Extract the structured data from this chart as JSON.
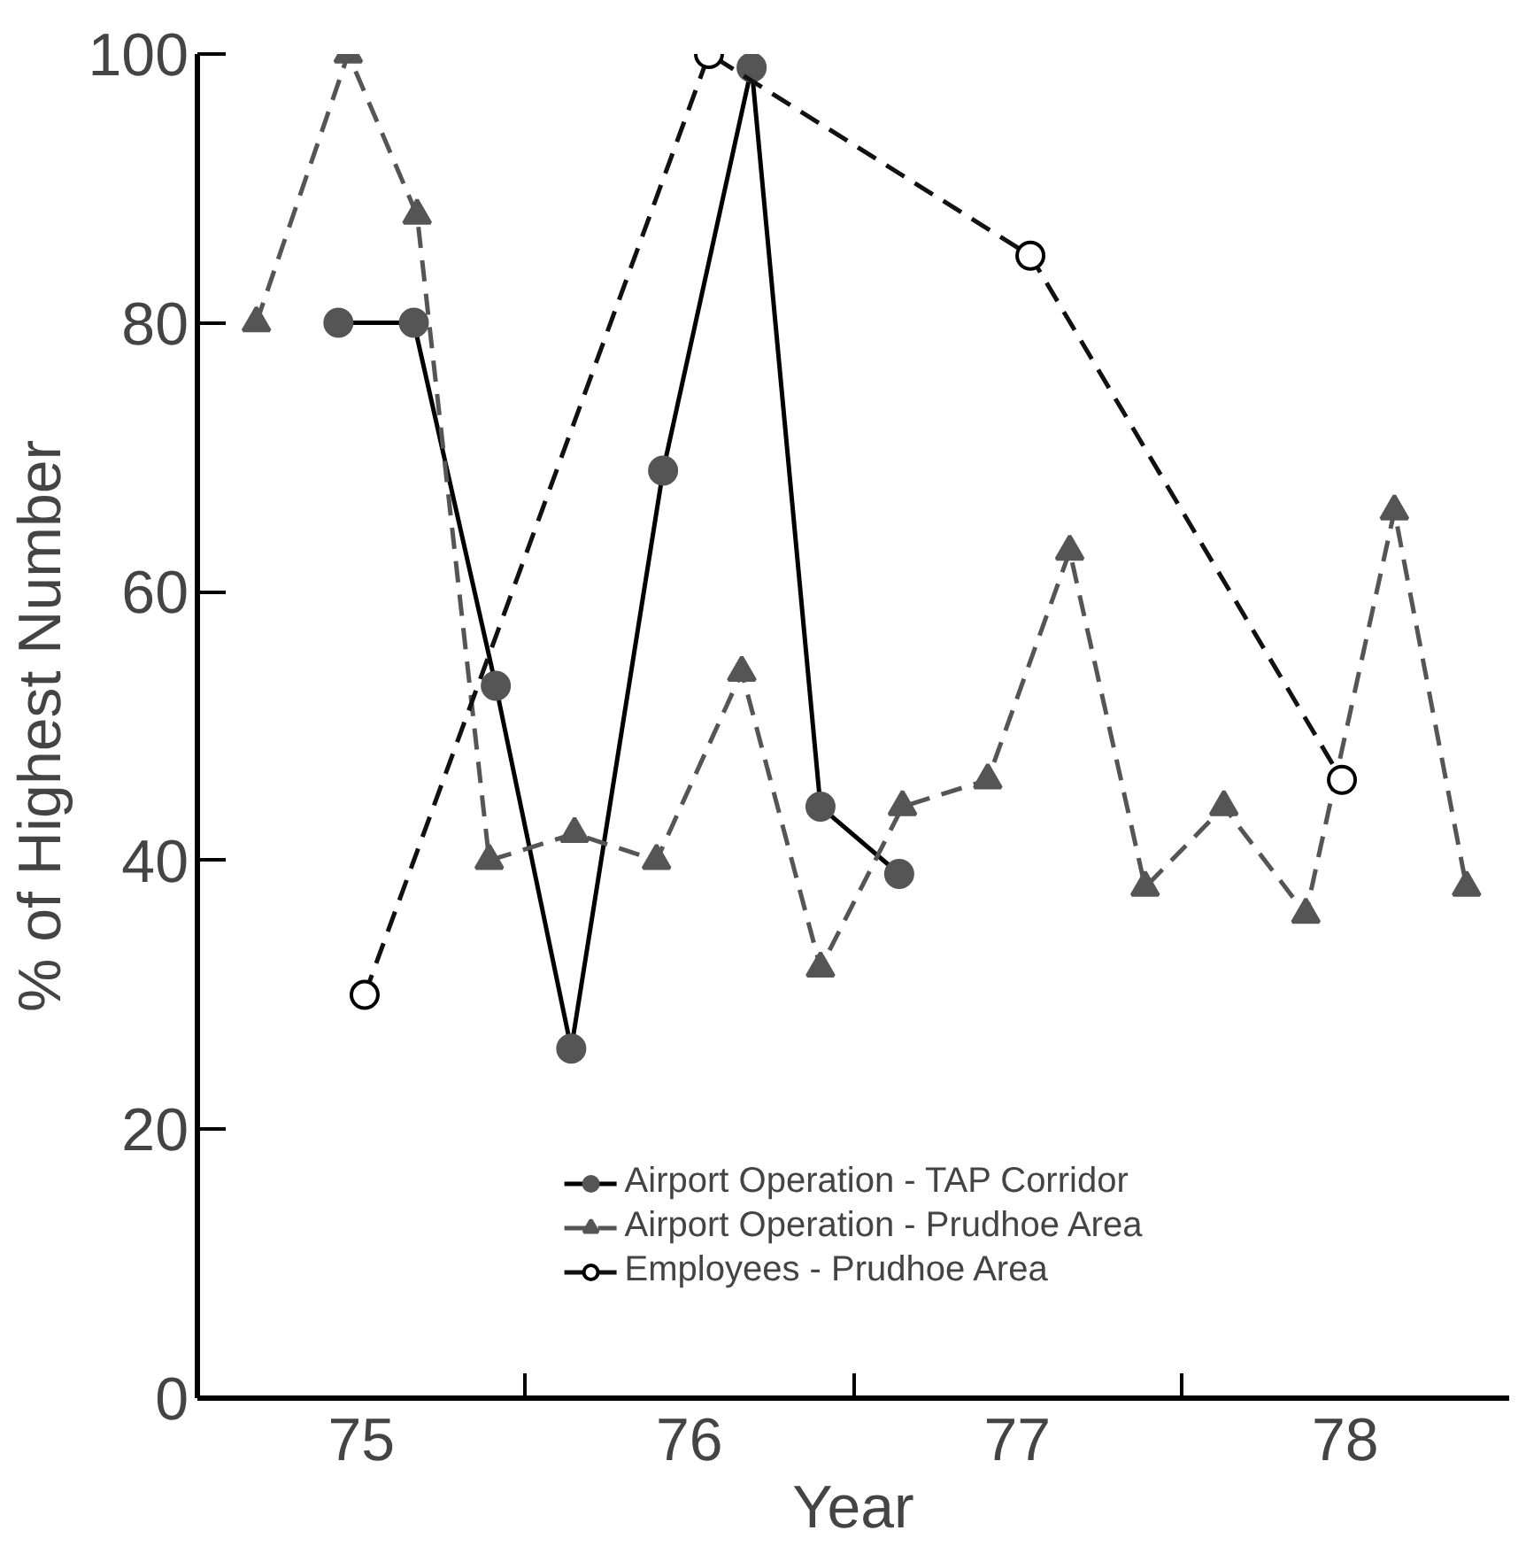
{
  "chart_data": {
    "type": "line",
    "xlabel": "Year",
    "ylabel": "% of Highest Number",
    "xlim": [
      75.0,
      79.0
    ],
    "ylim": [
      0,
      100
    ],
    "xticks": [
      {
        "value": 75.5,
        "label": "75"
      },
      {
        "value": 76,
        "label": null
      },
      {
        "value": 76.5,
        "label": "76"
      },
      {
        "value": 77,
        "label": null
      },
      {
        "value": 77.5,
        "label": "77"
      },
      {
        "value": 78,
        "label": null
      },
      {
        "value": 78.5,
        "label": "78"
      }
    ],
    "yticks": [
      0,
      20,
      40,
      60,
      80,
      100
    ],
    "grid": false,
    "legend": "bottom",
    "series": [
      {
        "name": "Airport Operation - TAP Corridor",
        "color": "#555555",
        "marker": "circle",
        "line_style": "solid",
        "x": [
          75.43,
          75.66,
          75.91,
          76.14,
          76.42,
          76.69,
          76.9,
          77.14
        ],
        "values": [
          80,
          80,
          53,
          26,
          69,
          99,
          44,
          39
        ]
      },
      {
        "name": "Airport Operation - Prudhoe Area",
        "color": "#555555",
        "marker": "triangle",
        "line_style": "dashed",
        "x": [
          75.18,
          75.46,
          75.67,
          75.89,
          76.15,
          76.4,
          76.66,
          76.9,
          77.15,
          77.41,
          77.66,
          77.89,
          78.13,
          78.38,
          78.65,
          78.87
        ],
        "values": [
          80,
          100,
          88,
          40,
          42,
          40,
          54,
          32,
          44,
          46,
          63,
          38,
          44,
          36,
          66,
          38
        ]
      },
      {
        "name": "Employees - Prudhoe Area",
        "color": "#111111",
        "marker": "circle_open",
        "line_style": "dashed",
        "x": [
          75.51,
          76.56,
          77.54,
          78.49
        ],
        "values": [
          30,
          100,
          85,
          46
        ]
      }
    ]
  }
}
